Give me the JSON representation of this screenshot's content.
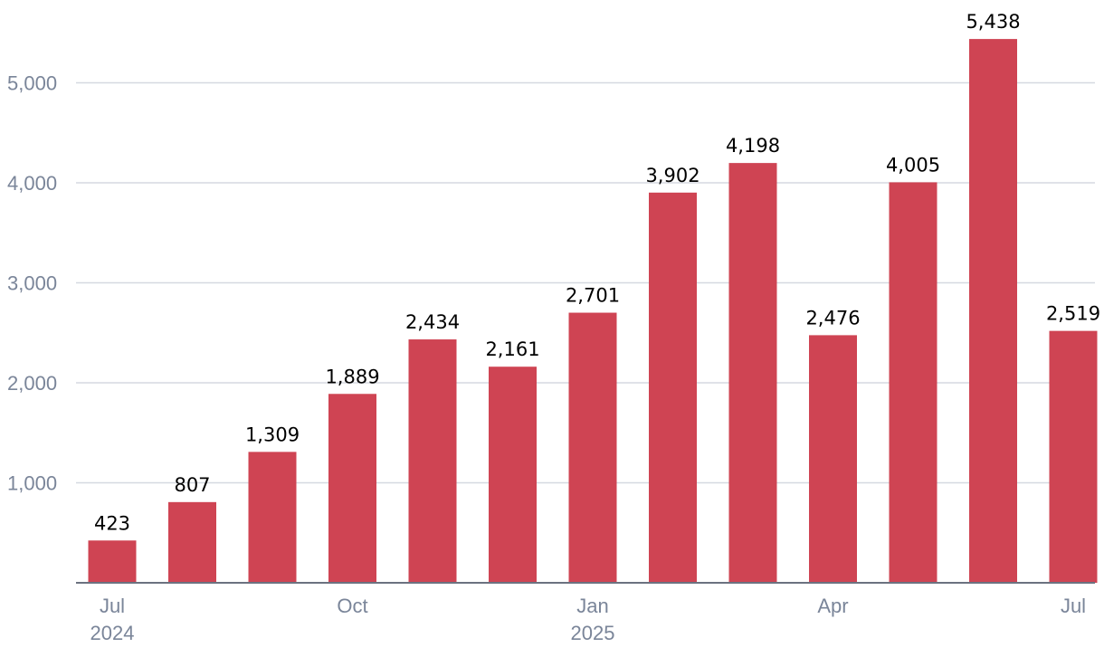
{
  "chart_data": {
    "type": "bar",
    "categories": [
      "2024-07",
      "2024-08",
      "2024-09",
      "2024-10",
      "2024-11",
      "2024-12",
      "2025-01",
      "2025-02",
      "2025-03",
      "2025-04",
      "2025-05",
      "2025-06",
      "2025-07"
    ],
    "values": [
      423,
      807,
      1309,
      1889,
      2434,
      2161,
      2701,
      3902,
      4198,
      2476,
      4005,
      5438,
      2519
    ],
    "data_labels": [
      "423",
      "807",
      "1,309",
      "1,889",
      "2,434",
      "2,161",
      "2,701",
      "3,902",
      "4,198",
      "2,476",
      "4,005",
      "5,438",
      "2,519"
    ],
    "title": "",
    "xlabel": "",
    "ylabel": "",
    "ylim": [
      0,
      5500
    ],
    "yticks": [
      1000,
      2000,
      3000,
      4000,
      5000
    ],
    "ytick_labels": [
      "1,000",
      "2,000",
      "3,000",
      "4,000",
      "5,000"
    ],
    "xtick_labels": [
      {
        "index": 0,
        "month": "Jul",
        "year": "2024"
      },
      {
        "index": 3,
        "month": "Oct",
        "year": ""
      },
      {
        "index": 6,
        "month": "Jan",
        "year": "2025"
      },
      {
        "index": 9,
        "month": "Apr",
        "year": ""
      },
      {
        "index": 12,
        "month": "Jul",
        "year": ""
      }
    ],
    "grid": true,
    "legend": "none",
    "bar_color": "#cf4453"
  }
}
